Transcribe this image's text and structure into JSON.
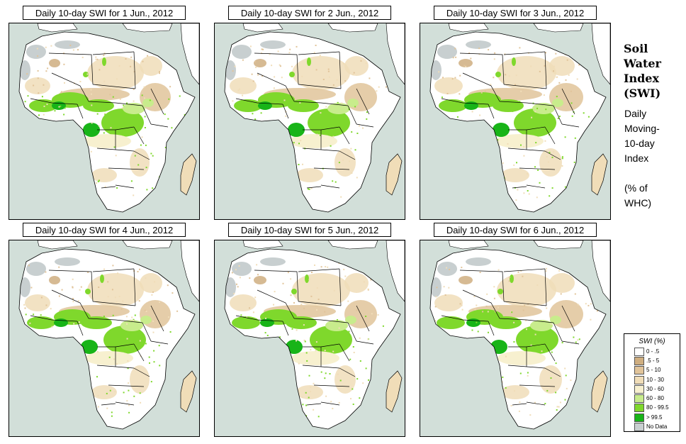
{
  "panels": [
    {
      "title": "Daily 10-day SWI for  1 Jun., 2012"
    },
    {
      "title": "Daily 10-day SWI for  2 Jun., 2012"
    },
    {
      "title": "Daily 10-day SWI for  3 Jun., 2012"
    },
    {
      "title": "Daily 10-day SWI for  4 Jun., 2012"
    },
    {
      "title": "Daily 10-day SWI for  5 Jun., 2012"
    },
    {
      "title": "Daily 10-day SWI for  6 Jun., 2012"
    }
  ],
  "side": {
    "title_lines": [
      "Soil",
      "Water",
      "Index",
      "(SWI)"
    ],
    "desc_lines": [
      "Daily",
      "Moving-",
      "10-day",
      "Index"
    ],
    "unit_lines": [
      "(% of",
      "WHC)"
    ]
  },
  "legend": {
    "title": "SWI (%)",
    "items": [
      {
        "label": "0 - .5",
        "color": "#ffffff"
      },
      {
        "label": ".5 - 5",
        "color": "#cfae80"
      },
      {
        "label": "5 - 10",
        "color": "#e1c49a"
      },
      {
        "label": "10 - 30",
        "color": "#f0ddb8"
      },
      {
        "label": "30 - 60",
        "color": "#f7f0cf"
      },
      {
        "label": "60 - 80",
        "color": "#c8ec8c"
      },
      {
        "label": "80 - 99.5",
        "color": "#7fd82c"
      },
      {
        "label": "> 99.5",
        "color": "#18b418"
      },
      {
        "label": "No Data",
        "color": "#c8cfd0"
      }
    ]
  },
  "colors": {
    "ocean": "#d2dfd9",
    "land": "#ffffff",
    "nodata": "#c8cfd0",
    "border": "#000000"
  }
}
